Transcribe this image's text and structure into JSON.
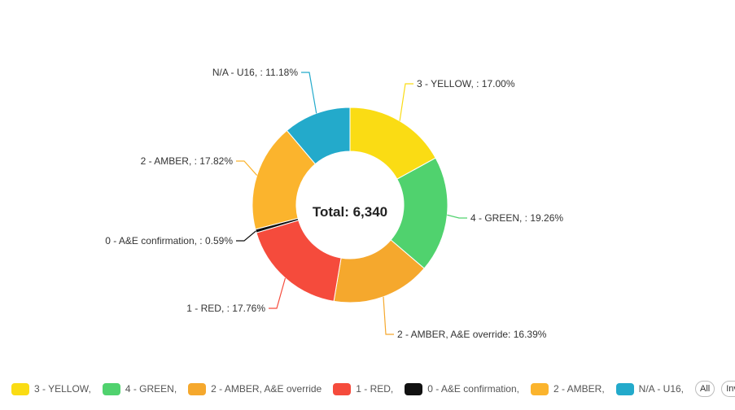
{
  "chart_data": {
    "type": "pie",
    "donut": true,
    "center_label": "Total: 6,340",
    "slices": [
      {
        "name": "3 - YELLOW,",
        "label": "3 - YELLOW, : 17.00%",
        "value": 17.0,
        "color": "#FADC14"
      },
      {
        "name": "4 - GREEN,",
        "label": "4 - GREEN, : 19.26%",
        "value": 19.26,
        "color": "#50D26E"
      },
      {
        "name": "2 - AMBER, A&E override",
        "label": "2 - AMBER, A&E override: 16.39%",
        "value": 16.39,
        "color": "#F5A82D"
      },
      {
        "name": "1 - RED,",
        "label": "1 - RED, : 17.76%",
        "value": 17.76,
        "color": "#F54B3C"
      },
      {
        "name": "0 - A&E confirmation,",
        "label": "0 - A&E confirmation, : 0.59%",
        "value": 0.59,
        "color": "#111111"
      },
      {
        "name": "2 - AMBER,",
        "label": "2 - AMBER, : 17.82%",
        "value": 17.82,
        "color": "#FBB42D"
      },
      {
        "name": "N/A - U16,",
        "label": "N/A - U16, : 11.18%",
        "value": 11.18,
        "color": "#23AACB"
      }
    ]
  },
  "legend": {
    "all_label": "All",
    "inv_label": "Inv"
  }
}
